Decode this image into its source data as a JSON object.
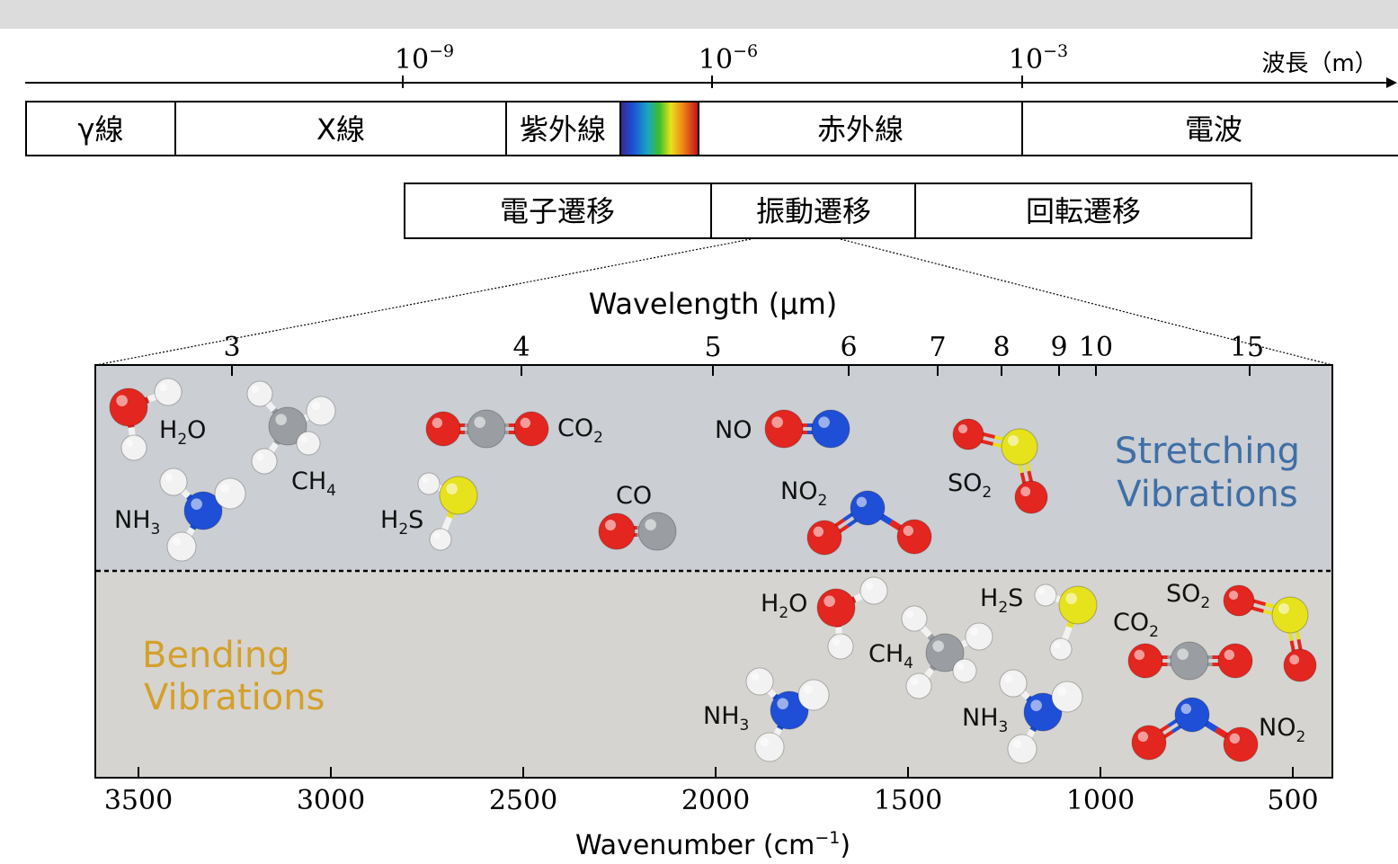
{
  "wavelength_axis": {
    "ticks": [
      {
        "label_base": "10",
        "label_exp": "−9"
      },
      {
        "label_base": "10",
        "label_exp": "−6"
      },
      {
        "label_base": "10",
        "label_exp": "−3"
      }
    ],
    "unit_label": "波長（m）"
  },
  "spectrum_bands": [
    "γ線",
    "X線",
    "紫外線",
    "赤外線",
    "電波"
  ],
  "transition_bands": [
    "電子遷移",
    "振動遷移",
    "回転遷移"
  ],
  "ir_chart": {
    "top_axis_title": "Wavelength (μm)",
    "top_ticks": [
      "3",
      "4",
      "5",
      "6",
      "7",
      "8",
      "9",
      "10",
      "15"
    ],
    "bottom_axis_title_base": "Wavenumber (cm",
    "bottom_axis_title_exp": "−1",
    "bottom_axis_title_close": ")",
    "bottom_ticks": [
      "3500",
      "3000",
      "2500",
      "2000",
      "1500",
      "1000",
      "500"
    ],
    "stretching_label_line1": "Stretching",
    "stretching_label_line2": "Vibrations",
    "bending_label_line1": "Bending",
    "bending_label_line2": "Vibrations",
    "colors": {
      "stretch_bg": "#cbced3",
      "bend_bg": "#d6d4d0",
      "stretch_text": "#3e6fa6",
      "bend_text": "#d4a02a",
      "oxygen": "#e3261f",
      "hydrogen": "#f2f2f2",
      "carbon": "#9a9ea2",
      "nitrogen": "#1f4fd6",
      "sulfur": "#e6e21c"
    }
  },
  "molecule_labels": {
    "s_h2o": {
      "base": "H",
      "sub": "2",
      "rest": "O"
    },
    "s_ch4": {
      "base": "CH",
      "sub": "4",
      "rest": ""
    },
    "s_nh3": {
      "base": "NH",
      "sub": "3",
      "rest": ""
    },
    "s_co2": {
      "base": "CO",
      "sub": "2",
      "rest": ""
    },
    "s_h2s": {
      "base": "H",
      "sub": "2",
      "rest": "S"
    },
    "s_co": {
      "base": "CO",
      "sub": "",
      "rest": ""
    },
    "s_no": {
      "base": "NO",
      "sub": "",
      "rest": ""
    },
    "s_no2": {
      "base": "NO",
      "sub": "2",
      "rest": ""
    },
    "s_so2": {
      "base": "SO",
      "sub": "2",
      "rest": ""
    },
    "b_h2o": {
      "base": "H",
      "sub": "2",
      "rest": "O"
    },
    "b_ch4": {
      "base": "CH",
      "sub": "4",
      "rest": ""
    },
    "b_nh3_a": {
      "base": "NH",
      "sub": "3",
      "rest": ""
    },
    "b_h2s": {
      "base": "H",
      "sub": "2",
      "rest": "S"
    },
    "b_nh3_b": {
      "base": "NH",
      "sub": "3",
      "rest": ""
    },
    "b_so2": {
      "base": "SO",
      "sub": "2",
      "rest": ""
    },
    "b_co2": {
      "base": "CO",
      "sub": "2",
      "rest": ""
    },
    "b_no2": {
      "base": "NO",
      "sub": "2",
      "rest": ""
    }
  }
}
